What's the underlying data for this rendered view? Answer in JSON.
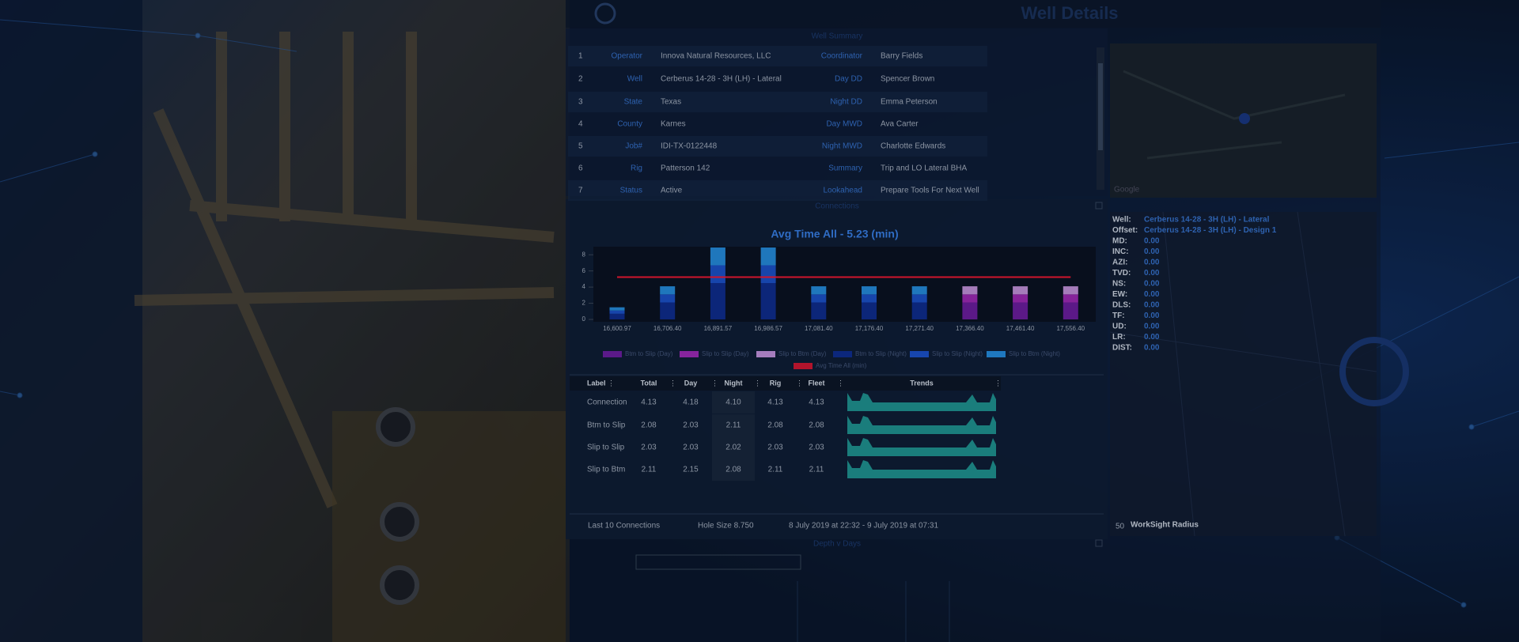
{
  "header": {
    "title": "Well Details"
  },
  "summary": {
    "title": "Well Summary",
    "rows": [
      [
        "1",
        "Operator",
        "Innova Natural Resources, LLC",
        "Coordinator",
        "Barry Fields"
      ],
      [
        "2",
        "Well",
        "Cerberus 14-28 - 3H (LH) - Lateral",
        "Day DD",
        "Spencer Brown"
      ],
      [
        "3",
        "State",
        "Texas",
        "Night DD",
        "Emma Peterson"
      ],
      [
        "4",
        "County",
        "Karnes",
        "Day MWD",
        "Ava Carter"
      ],
      [
        "5",
        "Job#",
        "IDI-TX-0122448",
        "Night MWD",
        "Charlotte Edwards"
      ],
      [
        "6",
        "Rig",
        "Patterson 142",
        "Summary",
        "Trip and LO Lateral BHA"
      ],
      [
        "7",
        "Status",
        "Active",
        "Lookahead",
        "Prepare Tools For Next Well"
      ]
    ]
  },
  "map": {
    "attribution": "Google"
  },
  "connections": {
    "title": "Connections",
    "table": {
      "columns": [
        "Label",
        "Total",
        "Day",
        "Night",
        "Rig",
        "Fleet",
        "Trends"
      ],
      "rows": [
        [
          "Connection",
          "4.13",
          "4.18",
          "4.10",
          "4.13",
          "4.13"
        ],
        [
          "Btm to Slip",
          "2.08",
          "2.03",
          "2.11",
          "2.08",
          "2.08"
        ],
        [
          "Slip to Slip",
          "2.03",
          "2.03",
          "2.02",
          "2.03",
          "2.03"
        ],
        [
          "Slip to Btm",
          "2.11",
          "2.15",
          "2.08",
          "2.11",
          "2.11"
        ]
      ]
    },
    "footer": [
      "Last 10 Connections",
      "Hole Size 8.750",
      "8 July 2019 at 22:32 - 9 July 2019 at 07:31"
    ]
  },
  "chart_data": {
    "type": "bar",
    "stacked": true,
    "title": "Avg Time All - 5.23 (min)",
    "categories": [
      "16,600.97",
      "16,706.40",
      "16,891.57",
      "16,986.57",
      "17,081.40",
      "17,176.40",
      "17,271.40",
      "17,366.40",
      "17,461.40",
      "17,556.40"
    ],
    "series": [
      {
        "name": "Btm to Slip (Day)",
        "color": "#6a1b9a",
        "values": [
          null,
          null,
          null,
          null,
          null,
          null,
          null,
          2.1,
          2.1,
          2.1
        ]
      },
      {
        "name": "Slip to Slip (Day)",
        "color": "#9c27b0",
        "values": [
          null,
          null,
          null,
          null,
          null,
          null,
          null,
          1.0,
          1.0,
          1.0
        ]
      },
      {
        "name": "Slip to Btm (Day)",
        "color": "#c18fd6",
        "values": [
          null,
          null,
          null,
          null,
          null,
          null,
          null,
          1.0,
          1.0,
          1.0
        ]
      },
      {
        "name": "Btm to Slip (Night)",
        "color": "#0d2a8a",
        "values": [
          0.7,
          2.1,
          4.5,
          4.5,
          2.1,
          2.1,
          2.1,
          null,
          null,
          null
        ]
      },
      {
        "name": "Slip to Slip (Night)",
        "color": "#1a4fc4",
        "values": [
          0.4,
          1.0,
          2.2,
          2.2,
          1.0,
          1.0,
          1.0,
          null,
          null,
          null
        ]
      },
      {
        "name": "Slip to Btm (Night)",
        "color": "#2389d8",
        "values": [
          0.4,
          1.0,
          2.2,
          2.2,
          1.0,
          1.0,
          1.0,
          null,
          null,
          null
        ]
      }
    ],
    "average": {
      "name": "Avg Time All (min)",
      "color": "#d0142c",
      "value": 5.23
    },
    "ylim": [
      0,
      9
    ],
    "yticks": [
      0,
      2,
      4,
      6,
      8
    ]
  },
  "depth": {
    "title": "Depth v Days"
  },
  "info": {
    "rows": [
      [
        "Well:",
        "Cerberus 14-28 - 3H (LH) - Lateral"
      ],
      [
        "Offset:",
        "Cerberus 14-28 - 3H (LH) - Design 1"
      ],
      [
        "MD:",
        "0.00"
      ],
      [
        "INC:",
        "0.00"
      ],
      [
        "AZI:",
        "0.00"
      ],
      [
        "TVD:",
        "0.00"
      ],
      [
        "NS:",
        "0.00"
      ],
      [
        "EW:",
        "0.00"
      ],
      [
        "DLS:",
        "0.00"
      ],
      [
        "TF:",
        "0.00"
      ],
      [
        "UD:",
        "0.00"
      ],
      [
        "LR:",
        "0.00"
      ],
      [
        "DIST:",
        "0.00"
      ]
    ],
    "radius": [
      "50",
      "WorkSight Radius"
    ]
  }
}
